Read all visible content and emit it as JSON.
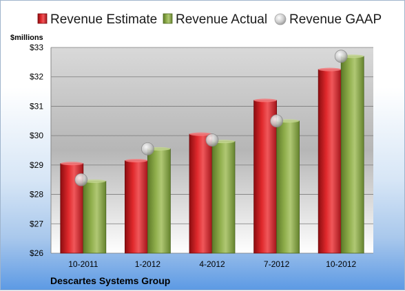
{
  "chart_data": {
    "type": "bar",
    "ylabel": "$millions",
    "ylim": [
      26,
      33
    ],
    "yticks": [
      "$26",
      "$27",
      "$28",
      "$29",
      "$30",
      "$31",
      "$32",
      "$33"
    ],
    "categories": [
      "10-2011",
      "1-2012",
      "4-2012",
      "7-2012",
      "10-2012"
    ],
    "series": [
      {
        "name": "Revenue Estimate",
        "kind": "bar",
        "color": "#d42a2a",
        "values": [
          29.05,
          29.15,
          30.05,
          31.2,
          32.25
        ]
      },
      {
        "name": "Revenue Actual",
        "kind": "bar",
        "color": "#8fae4b",
        "values": [
          28.45,
          29.55,
          29.8,
          30.5,
          32.7
        ]
      },
      {
        "name": "Revenue GAAP",
        "kind": "marker",
        "color": "#c0c0c0",
        "values": [
          28.5,
          29.55,
          29.85,
          30.5,
          32.7
        ]
      }
    ],
    "legend_position": "top",
    "grid": true,
    "footer": "Descartes Systems Group"
  }
}
